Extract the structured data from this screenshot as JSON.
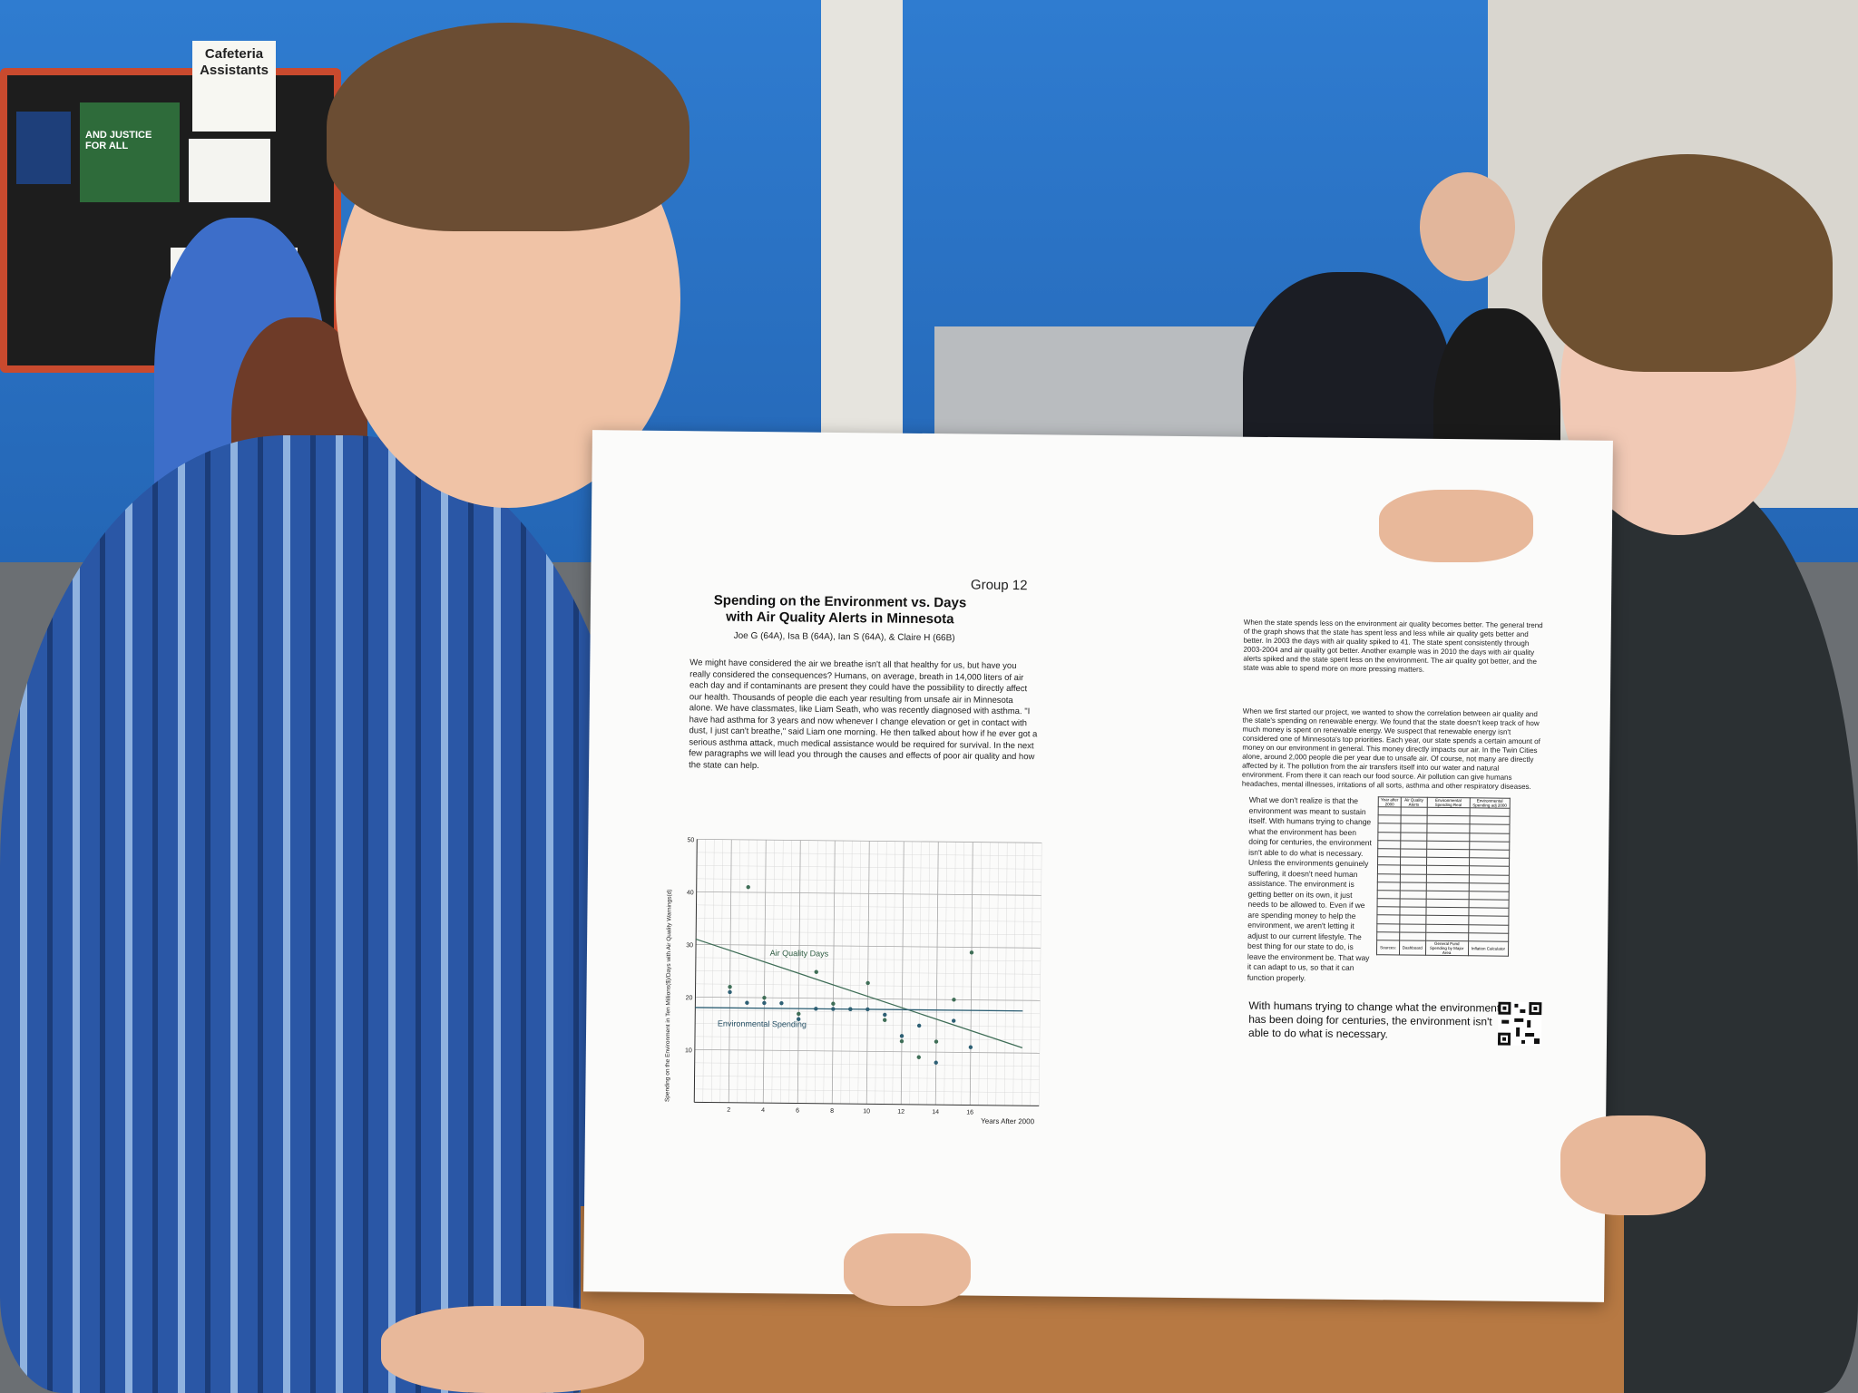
{
  "background": {
    "sign_text": "Cafeteria Assistants",
    "bulletin_text": "AND JUSTICE FOR ALL"
  },
  "poster": {
    "group": "Group 12",
    "title": "Spending on the Environment vs. Days with Air Quality Alerts in Minnesota",
    "authors": "Joe G (64A), Isa B (64A), Ian S (64A), & Claire H (66B)",
    "intro": "We might have considered the air we breathe isn't all that healthy for us, but have you really considered the consequences? Humans, on average, breath in 14,000 liters of air each day and if contaminants are present they could have the possibility to directly affect our health. Thousands of people die each year resulting from unsafe air in Minnesota alone. We have classmates, like Liam Seath, who was recently diagnosed with asthma. \"I have had asthma for 3 years and now whenever I change elevation or get in contact with dust, I just can't breathe,\" said Liam one morning. He then talked about how if he ever got a serious asthma attack, much medical assistance would be required for survival. In the next few paragraphs we will lead you through the causes and effects of poor air quality and how the state can help.",
    "right_para1": "When the state spends less on the environment air quality becomes better. The general trend of the graph shows that the state has spent less and less while air quality gets better and better. In 2003 the days with air quality spiked to 41. The state spent consistently through 2003-2004 and air quality got better. Another example was in 2010 the days with air quality alerts spiked and the state spent less on the environment. The air quality got better, and the state was able to spend more on more pressing matters.",
    "right_para2": "When we first started our project, we wanted to show the correlation between air quality and the state's spending on renewable energy. We found that the state doesn't keep track of how much money is spent on renewable energy. We suspect that renewable energy isn't considered one of Minnesota's top priorities. Each year, our state spends a certain amount of money on our environment in general. This money directly impacts our air. In the Twin Cities alone, around 2,000 people die per year due to unsafe air. Of course, not many are directly affected by it. The pollution from the air transfers itself into our water and natural environment. From there it can reach our food source. Air pollution can give humans headaches, mental illnesses, irritations of all sorts, asthma and other respiratory diseases.",
    "right_para3": "What we don't realize is that the environment was meant to sustain itself. With humans trying to change what the environment has been doing for centuries, the environment isn't able to do what is necessary. Unless the environments genuinely suffering, it doesn't need human assistance. The environment is getting better on its own, it just needs to be allowed to. Even if we are spending money to help the environment, we aren't letting it adjust to our current lifestyle. The best thing for our state to do, is leave the environment be. That way it can adapt to us, so that it can function properly.",
    "quote": "With humans trying to change what the environment has been doing for centuries, the environment isn't able to do what is necessary.",
    "table_headers": [
      "Year after 2000",
      "Air Quality Alerts",
      "Environmental Spending Real",
      "Environmental Spending adj 2000"
    ],
    "table_sources": [
      "Sources:",
      "Dashboard",
      "General Fund Spending by Major Area",
      "Inflation Calculator"
    ]
  },
  "chart_data": {
    "type": "scatter",
    "xlabel": "Years After 2000",
    "ylabel": "Spending on the Environment in Ten Millions($)/Days with Air Quality Warnings(d)",
    "xlim": [
      0,
      20
    ],
    "ylim": [
      0,
      50
    ],
    "x_ticks": [
      2,
      4,
      6,
      8,
      10,
      12,
      14,
      16
    ],
    "y_ticks": [
      10,
      20,
      30,
      40,
      50
    ],
    "grid": true,
    "series": [
      {
        "name": "Air Quality Days",
        "x": [
          2,
          3,
          4,
          6,
          7,
          8,
          9,
          10,
          11,
          12,
          13,
          14,
          15,
          16
        ],
        "y": [
          22,
          41,
          20,
          17,
          25,
          19,
          18,
          23,
          16,
          12,
          9,
          12,
          20,
          29
        ],
        "trend": [
          31,
          11
        ]
      },
      {
        "name": "Environmental Spending",
        "x": [
          2,
          3,
          4,
          5,
          6,
          7,
          8,
          9,
          10,
          11,
          12,
          13,
          14,
          15,
          16
        ],
        "y": [
          21,
          19,
          19,
          19,
          16,
          18,
          18,
          18,
          18,
          17,
          13,
          15,
          8,
          16,
          11
        ],
        "trend": [
          18,
          18
        ]
      }
    ],
    "annotations": [
      "Air Quality Days",
      "Environmental Spending"
    ]
  }
}
